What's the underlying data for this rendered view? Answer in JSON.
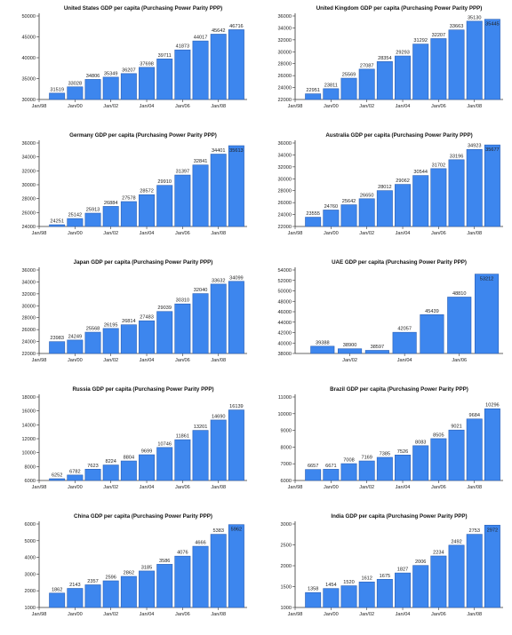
{
  "colors": {
    "bar_fill": "#3d86ee",
    "bar_edge": "#2a5fb5",
    "axis": "#333333",
    "background": "#ffffff"
  },
  "chart_data": [
    {
      "type": "bar",
      "title": "United States GDP per capita (Purchasing Power Parity  PPP)",
      "categories": [
        "1999",
        "2000",
        "2001",
        "2002",
        "2003",
        "2004",
        "2005",
        "2006",
        "2007",
        "2008",
        "2009"
      ],
      "values": [
        31519,
        33028,
        34806,
        35349,
        36207,
        37698,
        39711,
        41873,
        44017,
        45642,
        46716
      ],
      "yticks": [
        30000,
        35000,
        40000,
        45000,
        50000
      ],
      "ytick_labels": [
        "30000",
        "35000",
        "40000",
        "45000",
        "50000"
      ],
      "ylim": [
        30000,
        50000
      ],
      "xticks": [
        "Jan/98",
        "Jan/00",
        "Jan/02",
        "Jan/04",
        "Jan/06",
        "Jan/08"
      ],
      "grid": false
    },
    {
      "type": "bar",
      "title": "United Kingdom GDP per capita (Purchasing Power Parity  PPP)",
      "categories": [
        "1999",
        "2000",
        "2001",
        "2002",
        "2003",
        "2004",
        "2005",
        "2006",
        "2007",
        "2008",
        "2009"
      ],
      "values": [
        22951,
        23811,
        25569,
        27087,
        28354,
        29293,
        31292,
        32207,
        33663,
        35130,
        35445
      ],
      "yticks": [
        22000,
        24000,
        26000,
        28000,
        30000,
        32000,
        34000,
        36000
      ],
      "ytick_labels": [
        "22000",
        "24000",
        "26000",
        "28000",
        "30000",
        "32000",
        "34000",
        "36000"
      ],
      "ylim": [
        22000,
        36000
      ],
      "xticks": [
        "Jan/98",
        "Jan/00",
        "Jan/02",
        "Jan/04",
        "Jan/06",
        "Jan/08"
      ],
      "grid": false
    },
    {
      "type": "bar",
      "title": "Germany GDP per capita (Purchasing Power Parity  PPP)",
      "categories": [
        "1999",
        "2000",
        "2001",
        "2002",
        "2003",
        "2004",
        "2005",
        "2006",
        "2007",
        "2008",
        "2009"
      ],
      "values": [
        24251,
        25142,
        25913,
        26884,
        27578,
        28572,
        29910,
        31397,
        32841,
        34401,
        35613
      ],
      "yticks": [
        24000,
        26000,
        28000,
        30000,
        32000,
        34000,
        36000
      ],
      "ytick_labels": [
        "24000",
        "26000",
        "28000",
        "30000",
        "32000",
        "34000",
        "36000"
      ],
      "ylim": [
        24000,
        36000
      ],
      "xticks": [
        "Jan/98",
        "Jan/00",
        "Jan/02",
        "Jan/04",
        "Jan/06",
        "Jan/08"
      ],
      "grid": false
    },
    {
      "type": "bar",
      "title": "Australia GDP per capita (Purchasing Power Parity  PPP)",
      "categories": [
        "1999",
        "2000",
        "2001",
        "2002",
        "2003",
        "2004",
        "2005",
        "2006",
        "2007",
        "2008",
        "2009"
      ],
      "values": [
        23555,
        24760,
        25642,
        26650,
        28012,
        29062,
        30544,
        31702,
        33196,
        34923,
        35677
      ],
      "yticks": [
        22000,
        24000,
        26000,
        28000,
        30000,
        32000,
        34000,
        36000
      ],
      "ytick_labels": [
        "22000",
        "24000",
        "26000",
        "28000",
        "30000",
        "32000",
        "34000",
        "36000"
      ],
      "ylim": [
        22000,
        36000
      ],
      "xticks": [
        "Jan/98",
        "Jan/00",
        "Jan/02",
        "Jan/04",
        "Jan/06",
        "Jan/08"
      ],
      "grid": false
    },
    {
      "type": "bar",
      "title": "Japan GDP per capita (Purchasing Power Parity  PPP)",
      "categories": [
        "1999",
        "2000",
        "2001",
        "2002",
        "2003",
        "2004",
        "2005",
        "2006",
        "2007",
        "2008",
        "2009"
      ],
      "values": [
        23983,
        24249,
        25568,
        26195,
        26814,
        27483,
        29039,
        30310,
        32040,
        33632,
        34099
      ],
      "yticks": [
        22000,
        24000,
        26000,
        28000,
        30000,
        32000,
        34000,
        36000
      ],
      "ytick_labels": [
        "22000",
        "24000",
        "26000",
        "28000",
        "30000",
        "32000",
        "34000",
        "36000"
      ],
      "ylim": [
        22000,
        36000
      ],
      "xticks": [
        "Jan/98",
        "Jan/00",
        "Jan/02",
        "Jan/04",
        "Jan/06",
        "Jan/08"
      ],
      "grid": false
    },
    {
      "type": "bar",
      "title": "UAE GDP per capita (Purchasing Power Parity  PPP)",
      "categories": [
        "2001",
        "2002",
        "2003",
        "2004",
        "2005",
        "2006",
        "2007"
      ],
      "values": [
        39388,
        38900,
        38597,
        42057,
        45439,
        48810,
        53212
      ],
      "yticks": [
        38000,
        40000,
        42000,
        44000,
        46000,
        48000,
        50000,
        52000,
        54000
      ],
      "ytick_labels": [
        "38000",
        "40000",
        "42000",
        "44000",
        "46000",
        "48000",
        "50000",
        "52000",
        "54000"
      ],
      "ylim": [
        38000,
        54000
      ],
      "xticks": [
        "Jan/02",
        "Jan/04",
        "Jan/06"
      ],
      "grid": false
    },
    {
      "type": "bar",
      "title": "Russia GDP per capita (Purchasing Power Parity  PPP)",
      "categories": [
        "1999",
        "2000",
        "2001",
        "2002",
        "2003",
        "2004",
        "2005",
        "2006",
        "2007",
        "2008",
        "2009"
      ],
      "values": [
        6252,
        6782,
        7623,
        8224,
        8804,
        9699,
        10746,
        11861,
        13201,
        14690,
        16139
      ],
      "yticks": [
        6000,
        8000,
        10000,
        12000,
        14000,
        16000,
        18000
      ],
      "ytick_labels": [
        "6000",
        "8000",
        "10000",
        "12000",
        "14000",
        "16000",
        "18000"
      ],
      "ylim": [
        6000,
        18000
      ],
      "xticks": [
        "Jan/98",
        "Jan/00",
        "Jan/02",
        "Jan/04",
        "Jan/06",
        "Jan/08"
      ],
      "grid": false
    },
    {
      "type": "bar",
      "title": "Brazil GDP per capita (Purchasing Power Parity  PPP)",
      "categories": [
        "1999",
        "2000",
        "2001",
        "2002",
        "2003",
        "2004",
        "2005",
        "2006",
        "2007",
        "2008",
        "2009"
      ],
      "values": [
        6657,
        6671,
        7008,
        7169,
        7385,
        7526,
        8083,
        8505,
        9021,
        9684,
        10296
      ],
      "yticks": [
        6000,
        7000,
        8000,
        9000,
        10000,
        11000
      ],
      "ytick_labels": [
        "6000",
        "7000",
        "8000",
        "9000",
        "10000",
        "11000"
      ],
      "ylim": [
        6000,
        11000
      ],
      "xticks": [
        "Jan/98",
        "Jan/00",
        "Jan/02",
        "Jan/04",
        "Jan/06",
        "Jan/08"
      ],
      "grid": false
    },
    {
      "type": "bar",
      "title": "China GDP per capita (Purchasing Power Parity  PPP)",
      "categories": [
        "1999",
        "2000",
        "2001",
        "2002",
        "2003",
        "2004",
        "2005",
        "2006",
        "2007",
        "2008",
        "2009"
      ],
      "values": [
        1862,
        2143,
        2357,
        2596,
        2862,
        3185,
        3586,
        4076,
        4666,
        5383,
        5962
      ],
      "yticks": [
        1000,
        2000,
        3000,
        4000,
        5000,
        6000
      ],
      "ytick_labels": [
        "1000",
        "2000",
        "3000",
        "4000",
        "5000",
        "6000"
      ],
      "ylim": [
        1000,
        6000
      ],
      "xticks": [
        "Jan/98",
        "Jan/00",
        "Jan/02",
        "Jan/04",
        "Jan/06",
        "Jan/08"
      ],
      "grid": false
    },
    {
      "type": "bar",
      "title": "India GDP per capita (Purchasing Power Parity  PPP)",
      "categories": [
        "1999",
        "2000",
        "2001",
        "2002",
        "2003",
        "2004",
        "2005",
        "2006",
        "2007",
        "2008",
        "2009"
      ],
      "values": [
        1358,
        1454,
        1520,
        1612,
        1675,
        1827,
        2006,
        2234,
        2492,
        2753,
        2972
      ],
      "yticks": [
        1000,
        1500,
        2000,
        2500,
        3000
      ],
      "ytick_labels": [
        "1000",
        "1500",
        "2000",
        "2500",
        "3000"
      ],
      "ylim": [
        1000,
        3000
      ],
      "xticks": [
        "Jan/98",
        "Jan/00",
        "Jan/02",
        "Jan/04",
        "Jan/06",
        "Jan/08"
      ],
      "grid": false
    }
  ]
}
